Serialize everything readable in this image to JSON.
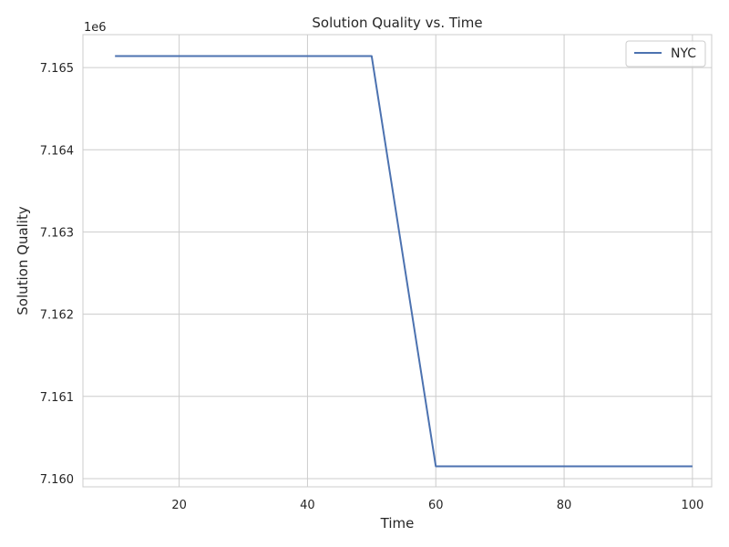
{
  "chart_data": {
    "type": "line",
    "title": "Solution Quality vs. Time",
    "xlabel": "Time",
    "ylabel": "Solution Quality",
    "offset_label": "1e6",
    "xlim": [
      5,
      103
    ],
    "ylim": [
      7.1599,
      7.1654
    ],
    "x_ticks": [
      20,
      40,
      60,
      80,
      100
    ],
    "y_ticks": [
      7.16,
      7.161,
      7.162,
      7.163,
      7.164,
      7.165
    ],
    "y_tick_labels": [
      "7.160",
      "7.161",
      "7.162",
      "7.163",
      "7.164",
      "7.165"
    ],
    "grid": true,
    "legend_position": "top-right",
    "series": [
      {
        "name": "NYC",
        "color": "#4c72b0",
        "x": [
          10,
          20,
          30,
          40,
          50,
          60,
          70,
          80,
          90,
          100
        ],
        "y": [
          7.16514,
          7.16514,
          7.16514,
          7.16514,
          7.16514,
          7.16015,
          7.16015,
          7.16015,
          7.16015,
          7.16015
        ]
      }
    ]
  }
}
